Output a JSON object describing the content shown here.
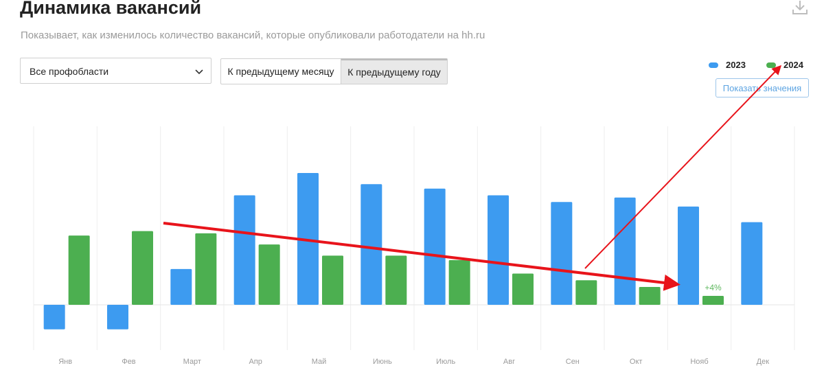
{
  "header": {
    "title": "Динамика вакансий",
    "subtitle": "Показывает, как изменилось количество вакансий, которые опубликовали работодатели на hh.ru"
  },
  "filters": {
    "profarea_value": "Все профобласти",
    "compare_prev_month": "К предыдущему месяцу",
    "compare_prev_year": "К предыдущему году"
  },
  "legend": {
    "series_a": "2023",
    "series_b": "2024",
    "show_values_button": "Показать значения"
  },
  "colors": {
    "series_a": "#3d9bf0",
    "series_b": "#4caf50",
    "arrow": "#e8141b",
    "grid": "#eeeeee"
  },
  "chart_data": {
    "type": "bar",
    "title": "Динамика вакансий",
    "categories": [
      "Янв",
      "Фев",
      "Март",
      "Апр",
      "Май",
      "Июнь",
      "Июль",
      "Авг",
      "Сен",
      "Окт",
      "Нояб",
      "Дек"
    ],
    "series": [
      {
        "name": "2023",
        "values": [
          -11,
          -11,
          16,
          49,
          59,
          54,
          52,
          49,
          46,
          48,
          44,
          37
        ]
      },
      {
        "name": "2024",
        "values": [
          31,
          33,
          32,
          27,
          22,
          22,
          20,
          14,
          11,
          8,
          4,
          null
        ]
      }
    ],
    "annotations": [
      {
        "category": "Нояб",
        "series": "2024",
        "text": "+4%"
      }
    ],
    "ylim": [
      -20,
      80
    ],
    "grid": true,
    "legend_position": "top-right"
  }
}
